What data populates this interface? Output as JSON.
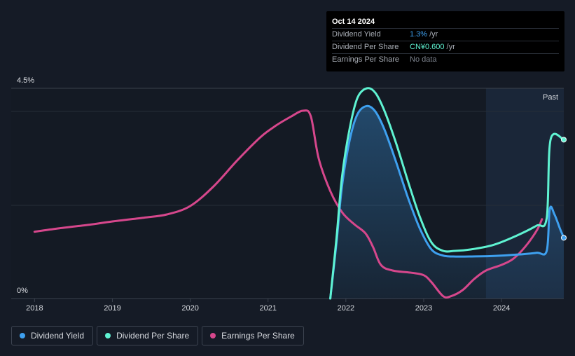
{
  "tooltip": {
    "date": "Oct 14 2024",
    "rows": [
      {
        "label": "Dividend Yield",
        "value": "1.3%",
        "unit": "/yr",
        "color": "#3ea0ef"
      },
      {
        "label": "Dividend Per Share",
        "value": "CN¥0.600",
        "unit": "/yr",
        "color": "#5ff3d2"
      },
      {
        "label": "Earnings Per Share",
        "value": "No data",
        "unit": "",
        "color": "#7c828c"
      }
    ]
  },
  "past_label": "Past",
  "legend": [
    {
      "label": "Dividend Yield",
      "color": "#3ea0ef"
    },
    {
      "label": "Dividend Per Share",
      "color": "#5ff3d2"
    },
    {
      "label": "Earnings Per Share",
      "color": "#d6478c"
    }
  ],
  "chart_data": {
    "type": "line",
    "y_axis": {
      "top_label": "4.5%",
      "bottom_label": "0%",
      "ylim": [
        0,
        4.5
      ],
      "unit": "%"
    },
    "x_ticks": [
      "2018",
      "2019",
      "2020",
      "2021",
      "2022",
      "2023",
      "2024"
    ],
    "xlim": [
      2017.7,
      2024.8
    ],
    "past_region_start": 2023.8,
    "series": [
      {
        "name": "Dividend Yield",
        "color": "#3ea0ef",
        "fill": true,
        "points": [
          [
            2021.8,
            0
          ],
          [
            2021.88,
            1.2
          ],
          [
            2021.95,
            2.4
          ],
          [
            2022.05,
            3.4
          ],
          [
            2022.15,
            3.95
          ],
          [
            2022.27,
            4.12
          ],
          [
            2022.38,
            4.0
          ],
          [
            2022.5,
            3.6
          ],
          [
            2022.65,
            2.9
          ],
          [
            2022.8,
            2.15
          ],
          [
            2022.95,
            1.5
          ],
          [
            2023.1,
            1.05
          ],
          [
            2023.25,
            0.92
          ],
          [
            2023.38,
            0.9
          ],
          [
            2023.6,
            0.9
          ],
          [
            2023.9,
            0.91
          ],
          [
            2024.2,
            0.94
          ],
          [
            2024.45,
            0.98
          ],
          [
            2024.58,
            1.02
          ],
          [
            2024.62,
            1.92
          ],
          [
            2024.68,
            1.8
          ],
          [
            2024.75,
            1.5
          ],
          [
            2024.8,
            1.3
          ]
        ]
      },
      {
        "name": "Dividend Per Share",
        "color": "#5ff3d2",
        "points": [
          [
            2021.8,
            0
          ],
          [
            2021.88,
            1.3
          ],
          [
            2021.95,
            2.6
          ],
          [
            2022.05,
            3.65
          ],
          [
            2022.15,
            4.3
          ],
          [
            2022.27,
            4.5
          ],
          [
            2022.38,
            4.4
          ],
          [
            2022.5,
            4.0
          ],
          [
            2022.65,
            3.3
          ],
          [
            2022.8,
            2.5
          ],
          [
            2022.95,
            1.75
          ],
          [
            2023.1,
            1.2
          ],
          [
            2023.25,
            1.02
          ],
          [
            2023.4,
            1.02
          ],
          [
            2023.6,
            1.05
          ],
          [
            2023.9,
            1.15
          ],
          [
            2024.2,
            1.35
          ],
          [
            2024.45,
            1.56
          ],
          [
            2024.58,
            1.72
          ],
          [
            2024.63,
            3.4
          ],
          [
            2024.8,
            3.4
          ]
        ]
      },
      {
        "name": "Earnings Per Share",
        "color": "#d6478c",
        "points": [
          [
            2018.0,
            1.43
          ],
          [
            2018.3,
            1.5
          ],
          [
            2018.7,
            1.58
          ],
          [
            2019.0,
            1.65
          ],
          [
            2019.4,
            1.73
          ],
          [
            2019.7,
            1.8
          ],
          [
            2020.0,
            1.98
          ],
          [
            2020.3,
            2.4
          ],
          [
            2020.6,
            2.95
          ],
          [
            2020.9,
            3.45
          ],
          [
            2021.1,
            3.7
          ],
          [
            2021.3,
            3.9
          ],
          [
            2021.45,
            4.02
          ],
          [
            2021.55,
            3.9
          ],
          [
            2021.65,
            3.0
          ],
          [
            2021.8,
            2.3
          ],
          [
            2021.95,
            1.85
          ],
          [
            2022.1,
            1.6
          ],
          [
            2022.25,
            1.4
          ],
          [
            2022.35,
            1.1
          ],
          [
            2022.45,
            0.72
          ],
          [
            2022.6,
            0.6
          ],
          [
            2022.85,
            0.55
          ],
          [
            2023.0,
            0.5
          ],
          [
            2023.1,
            0.35
          ],
          [
            2023.25,
            0.05
          ],
          [
            2023.35,
            0.05
          ],
          [
            2023.5,
            0.18
          ],
          [
            2023.65,
            0.42
          ],
          [
            2023.8,
            0.6
          ],
          [
            2024.0,
            0.72
          ],
          [
            2024.15,
            0.85
          ],
          [
            2024.3,
            1.1
          ],
          [
            2024.45,
            1.45
          ],
          [
            2024.52,
            1.7
          ]
        ]
      }
    ],
    "end_markers": [
      {
        "series": "Dividend Yield",
        "x": 2024.8,
        "y": 1.3
      },
      {
        "series": "Dividend Per Share",
        "x": 2024.8,
        "y": 3.4
      }
    ],
    "grid": true,
    "legend_position": "bottom-left"
  }
}
